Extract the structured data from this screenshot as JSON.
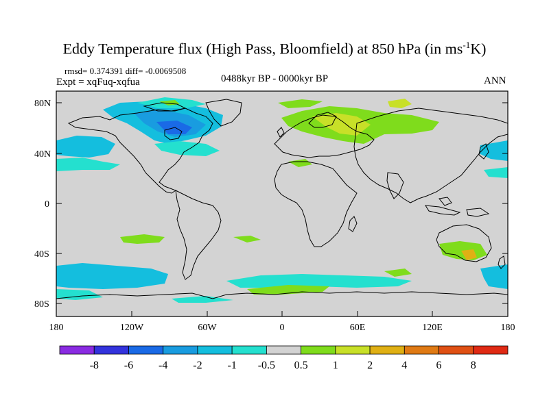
{
  "header": {
    "title": "Eddy Temperature flux (High Pass, Bloomfield) at 850 hPa (in ms",
    "title_sup": "-1",
    "title_end": "K)",
    "stats": "rmsd= 0.374391  diff= -0.0069508",
    "expt": "Expt = xqFuq-xqfua",
    "period": "0488kyr BP - 0000kyr BP",
    "season": "ANN"
  },
  "map": {
    "lat_labels": [
      "80N",
      "40N",
      "0",
      "40S",
      "80S"
    ],
    "lon_labels": [
      "180",
      "120W",
      "60W",
      "0",
      "60E",
      "120E",
      "180"
    ],
    "background_color": "#d3d3d3"
  },
  "colorbar": {
    "labels": [
      "-8",
      "-6",
      "-4",
      "-2",
      "-1",
      "-0.5",
      "0.5",
      "1",
      "2",
      "4",
      "6",
      "8"
    ],
    "colors": [
      "#8a2be2",
      "#3333dd",
      "#1a6ae6",
      "#199ce0",
      "#14bede",
      "#24e0cf",
      "#d3d3d3",
      "#7fdc1c",
      "#c8e028",
      "#e0b014",
      "#e07a14",
      "#e05014",
      "#e02a14"
    ]
  }
}
